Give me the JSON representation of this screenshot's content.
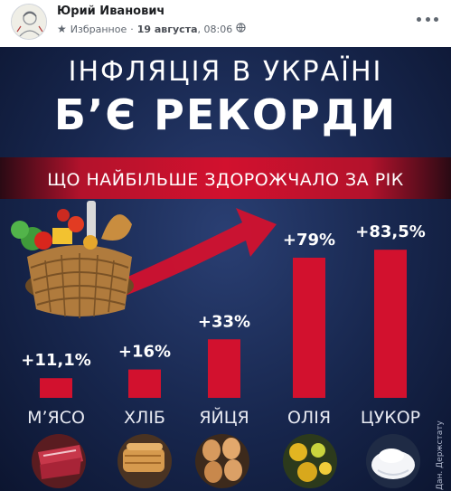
{
  "post": {
    "author": "Юрий Иванович",
    "visibility_label": "Избранное",
    "date": "19 августа",
    "time": "08:06",
    "icons": [
      "avatar",
      "star-icon",
      "globe-icon",
      "more-options-icon"
    ]
  },
  "infographic": {
    "headline_line1": "ІНФЛЯЦІЯ В УКРАЇНІ",
    "headline_line2": "Б’Є РЕКОРДИ",
    "subtitle": "ЩО НАЙБІЛЬШЕ ЗДОРОЖЧАЛО ЗА РІК",
    "credit": "Дан. Держстату",
    "colors": {
      "background": "#17264d",
      "bar": "#d2112e",
      "arrow": "#d2112e",
      "text": "#ffffff"
    },
    "icons": [
      "grocery-basket-icon",
      "meat-icon",
      "bread-icon",
      "eggs-icon",
      "oil-icon",
      "sugar-icon"
    ]
  },
  "chart_data": {
    "type": "bar",
    "categories": [
      "М’ЯСО",
      "ХЛІБ",
      "ЯЙЦЯ",
      "ОЛІЯ",
      "ЦУКОР"
    ],
    "values": [
      11.1,
      16,
      33,
      79,
      83.5
    ],
    "value_labels": [
      "+11,1%",
      "+16%",
      "+33%",
      "+79%",
      "+83,5%"
    ],
    "title": "ЩО НАЙБІЛЬШЕ ЗДОРОЖЧАЛО ЗА РІК",
    "xlabel": "",
    "ylabel": "",
    "ylim": [
      0,
      90
    ],
    "grid": false,
    "legend": "none"
  }
}
